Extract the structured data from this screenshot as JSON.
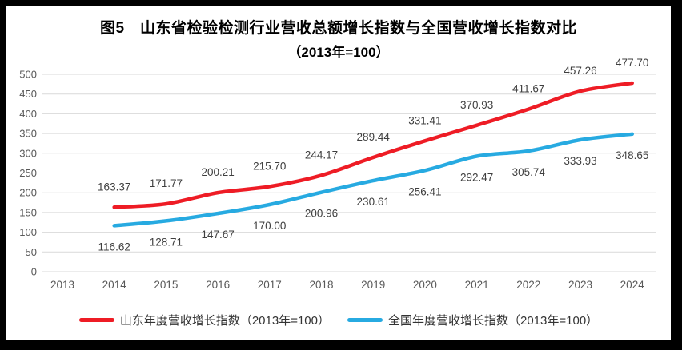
{
  "title": {
    "line1": "图5　山东省检验检测行业营收总额增长指数与全国营收增长指数对比",
    "line2": "（2013年=100）"
  },
  "chart_data": {
    "type": "line",
    "categories": [
      "2013",
      "2014",
      "2015",
      "2016",
      "2017",
      "2018",
      "2019",
      "2020",
      "2021",
      "2022",
      "2023",
      "2024"
    ],
    "series": [
      {
        "name": "山东年度营收增长指数（2013年=100）",
        "color": "#ee1c25",
        "start_index": 1,
        "values": [
          163.37,
          171.77,
          200.21,
          215.7,
          244.17,
          289.44,
          331.41,
          370.93,
          411.67,
          457.26,
          477.7
        ]
      },
      {
        "name": "全国年度营收增长指数（2013年=100）",
        "color": "#27aae1",
        "start_index": 1,
        "values": [
          116.62,
          128.71,
          147.67,
          170.0,
          200.96,
          230.61,
          256.41,
          292.47,
          305.74,
          333.93,
          348.65
        ]
      }
    ],
    "title": "图5　山东省检验检测行业营收总额增长指数与全国营收增长指数对比（2013年=100）",
    "xlabel": "",
    "ylabel": "",
    "ylim": [
      0,
      500
    ],
    "ytick_step": 50,
    "grid": "horizontal-only",
    "legend_position": "bottom",
    "data_labels": "shown-two-decimals"
  },
  "legend": {
    "items": [
      {
        "label": "山东年度营收增长指数（2013年=100）",
        "color": "#ee1c25"
      },
      {
        "label": "全国年度营收增长指数（2013年=100）",
        "color": "#27aae1"
      }
    ]
  },
  "colors": {
    "frame": "#000000",
    "card_background": "#ffffff",
    "gridline": "#d9d9d9",
    "tick_label": "#595959",
    "data_label": "#3f3f3f",
    "legend_text": "#333333"
  }
}
